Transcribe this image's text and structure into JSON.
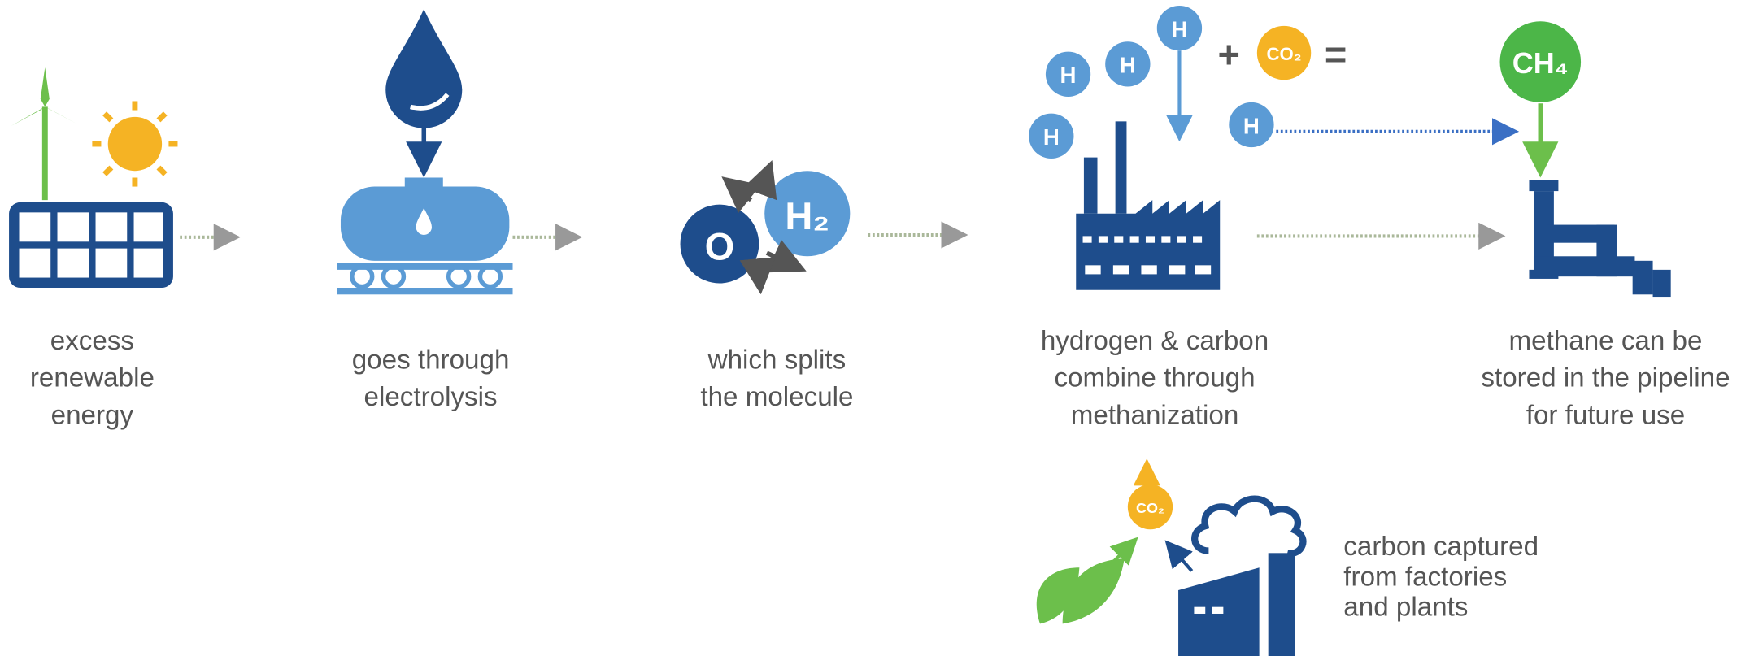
{
  "steps": [
    {
      "lines": [
        "excess",
        "renewable",
        "energy"
      ]
    },
    {
      "lines": [
        "goes through",
        "electrolysis"
      ]
    },
    {
      "lines": [
        "which splits",
        "the molecule"
      ]
    },
    {
      "lines": [
        "hydrogen & carbon",
        "combine through",
        "methanization"
      ]
    },
    {
      "lines": [
        "methane can be",
        "stored in the pipeline",
        "for future use"
      ]
    }
  ],
  "carbon_source": {
    "lines": [
      "carbon captured",
      "from factories",
      "and plants"
    ]
  },
  "icon_labels": {
    "hydrogen": "H",
    "hydrogen_molecule": "H₂",
    "oxygen": "O",
    "carbon_dioxide": "CO₂",
    "methane": "CH₄",
    "plus": "+",
    "equals": "="
  }
}
